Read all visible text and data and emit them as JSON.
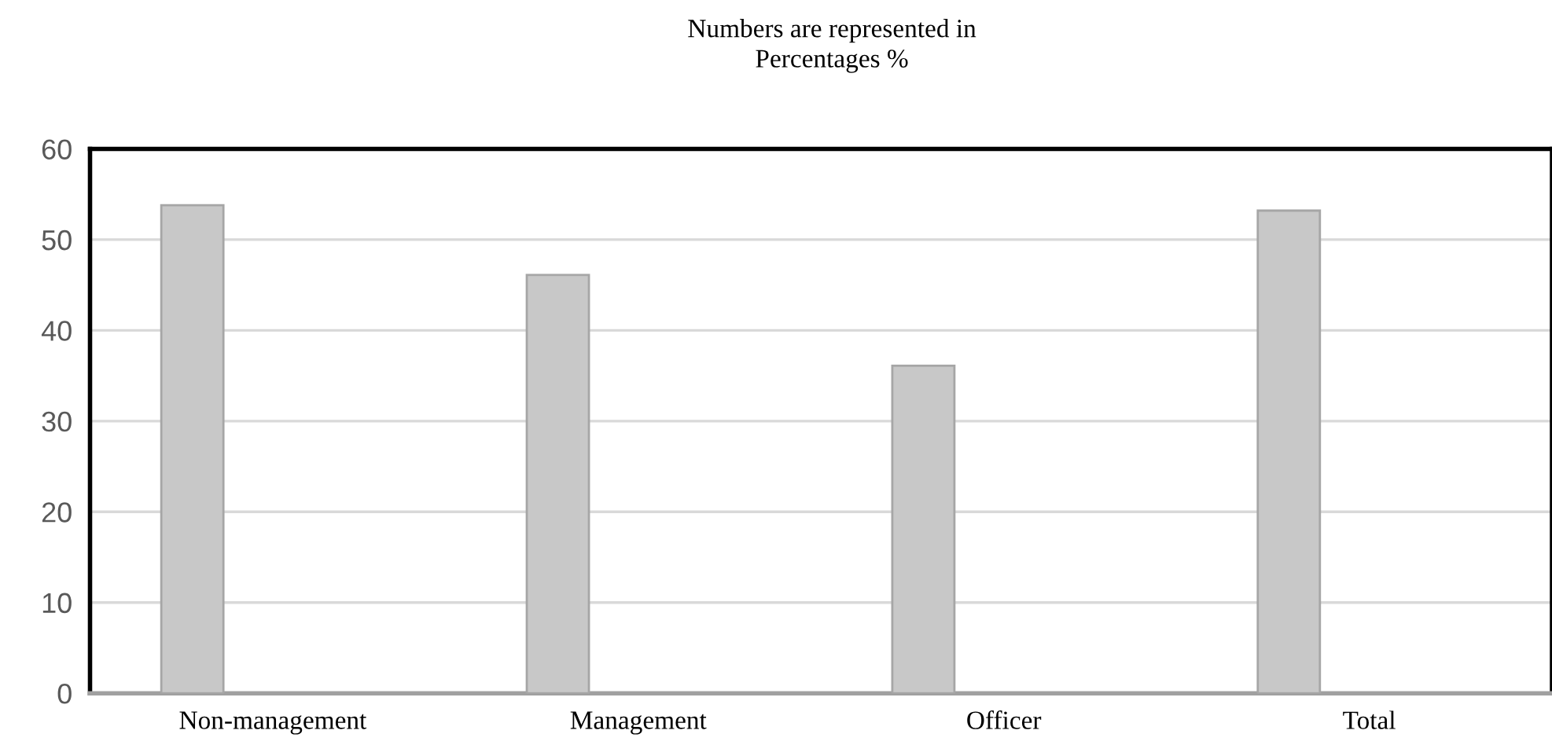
{
  "chart_data": {
    "type": "bar",
    "title": "Numbers are represented in\nPercentages %",
    "categories": [
      "Non-management",
      "Management",
      "Officer",
      "Total"
    ],
    "values": [
      53.8,
      46.1,
      36.1,
      53.2
    ],
    "color": "#c8c8c8",
    "ylim": [
      0,
      60
    ],
    "yticks": [
      0,
      10,
      20,
      30,
      40,
      50,
      60
    ],
    "grid": "y"
  }
}
